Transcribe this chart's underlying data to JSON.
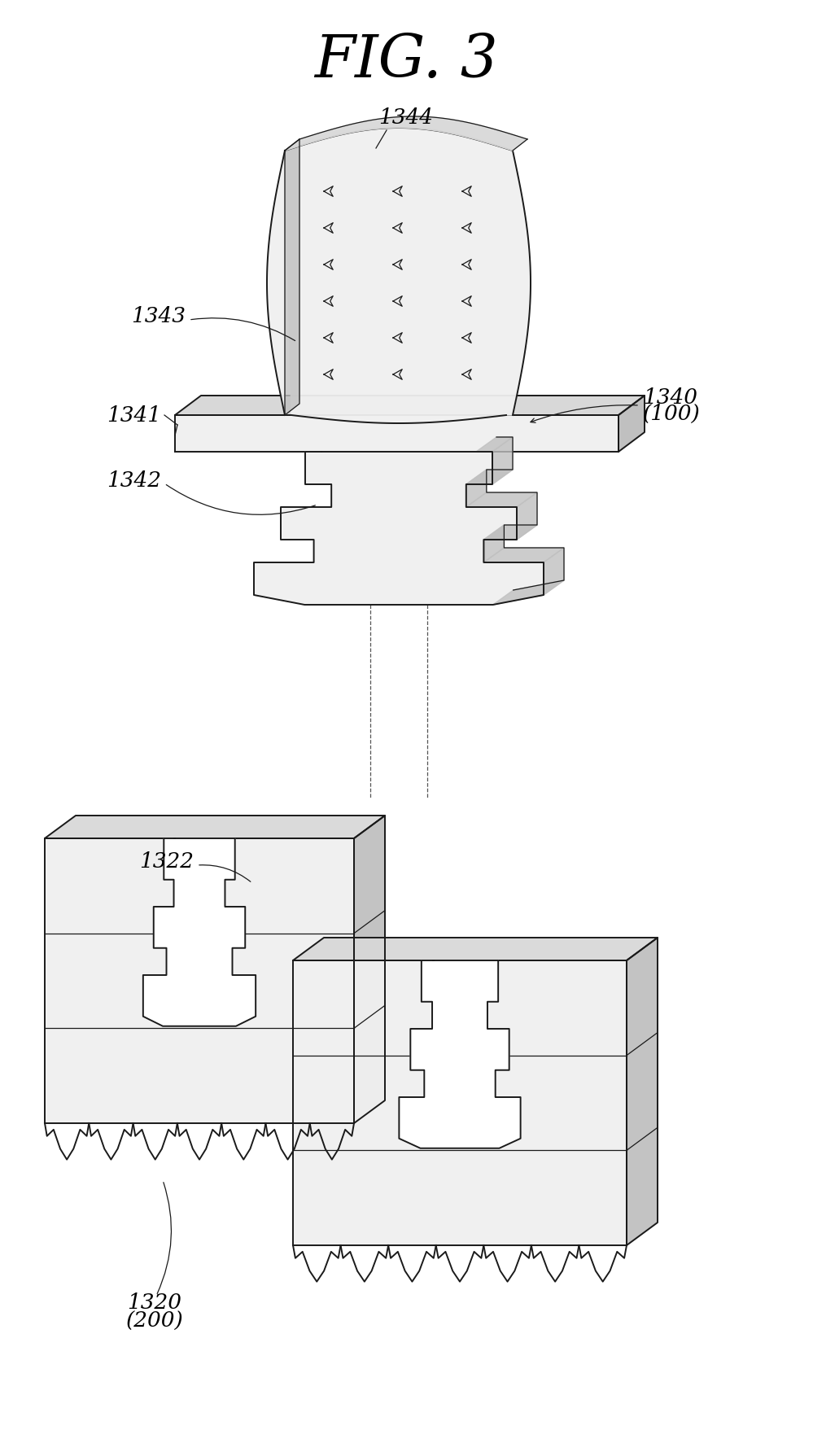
{
  "title": "FIG. 3",
  "title_fontsize": 52,
  "title_style": "italic",
  "title_font": "serif",
  "bg_color": "#ffffff",
  "line_color": "#1a1a1a",
  "fill_light": "#f0f0f0",
  "fill_mid": "#d8d8d8",
  "fill_dark": "#c0c0c0",
  "line_width": 1.4,
  "thin_line": 0.9,
  "label_fontsize": 19,
  "label_style": "italic",
  "label_font": "serif"
}
